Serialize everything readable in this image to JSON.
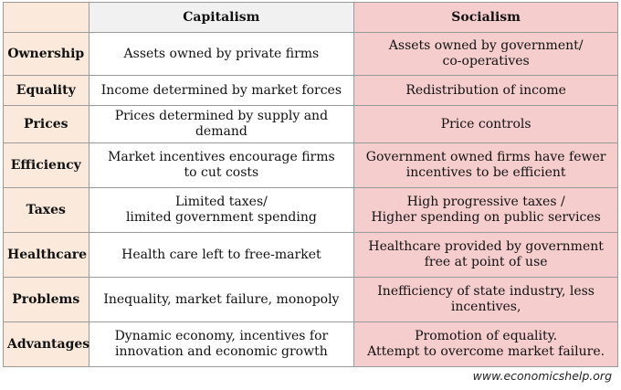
{
  "headers": {
    "corner": "",
    "capitalism": "Capitalism",
    "socialism": "Socialism"
  },
  "rows": [
    {
      "label": "Ownership",
      "capitalism": "Assets owned by private firms",
      "socialism": "Assets owned by government/\nco-operatives"
    },
    {
      "label": "Equality",
      "capitalism": "Income determined by market forces",
      "socialism": "Redistribution of income"
    },
    {
      "label": "Prices",
      "capitalism": "Prices determined by supply and demand",
      "socialism": "Price controls"
    },
    {
      "label": "Efficiency",
      "capitalism": "Market incentives encourage firms\nto cut costs",
      "socialism": "Government owned firms have fewer\nincentives to be efficient"
    },
    {
      "label": "Taxes",
      "capitalism": "Limited taxes/\nlimited government spending",
      "socialism": "High progressive taxes /\nHigher spending on public services"
    },
    {
      "label": "Healthcare",
      "capitalism": "Health care left to free-market",
      "socialism": "Healthcare provided by government\nfree at point of use"
    },
    {
      "label": "Problems",
      "capitalism": "Inequality, market failure, monopoly",
      "socialism": "Inefficiency of state industry, less\nincentives,"
    },
    {
      "label": "Advantages",
      "capitalism": "Dynamic economy, incentives for\ninnovation and economic growth",
      "socialism": "Promotion of equality.\nAttempt to overcome market failure."
    }
  ],
  "footer": "www.economicshelp.org",
  "colors": {
    "label_column_bg": "#fbe9dc",
    "capitalism_header_bg": "#f1f1f1",
    "socialism_bg": "#f6cdcd",
    "border": "#9a9a9a"
  }
}
